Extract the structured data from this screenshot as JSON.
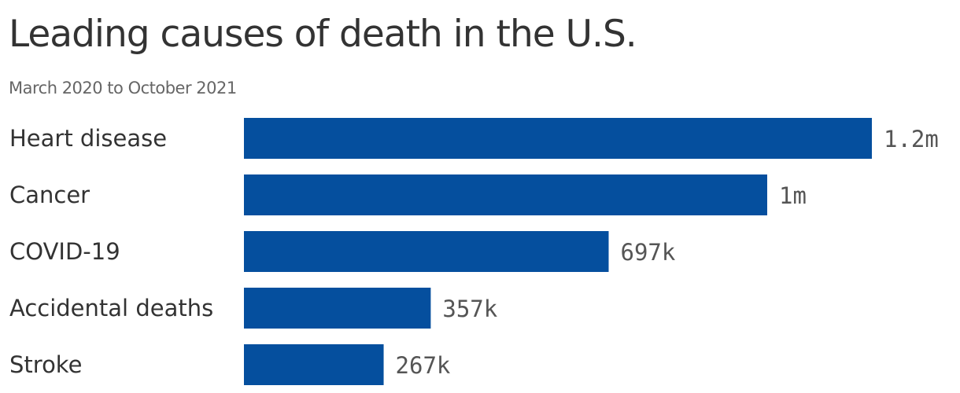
{
  "chart_data": {
    "type": "bar",
    "orientation": "horizontal",
    "title": "Leading causes of death in the U.S.",
    "subtitle": "March 2020 to October 2021",
    "categories": [
      "Heart disease",
      "Cancer",
      "COVID-19",
      "Accidental deaths",
      "Stroke"
    ],
    "values": [
      1200000,
      1000000,
      697000,
      357000,
      267000
    ],
    "value_labels": [
      "1.2m",
      "1m",
      "697k",
      "357k",
      "267k"
    ],
    "xlim": [
      0,
      1200000
    ],
    "grid": false,
    "bar_color": "#054f9e"
  }
}
